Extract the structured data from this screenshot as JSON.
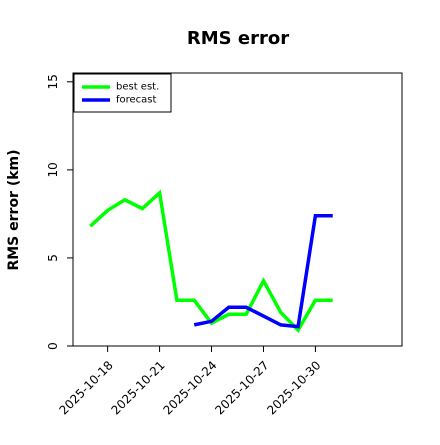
{
  "chart_data": {
    "type": "line",
    "title": "RMS error",
    "xlabel": "",
    "ylabel": "RMS error (km)",
    "x": [
      "2025-10-17",
      "2025-10-18",
      "2025-10-19",
      "2025-10-20",
      "2025-10-21",
      "2025-10-22",
      "2025-10-23",
      "2025-10-24",
      "2025-10-25",
      "2025-10-26",
      "2025-10-27",
      "2025-10-28",
      "2025-10-29",
      "2025-10-30",
      "2025-10-31"
    ],
    "series": [
      {
        "name": "best est.",
        "color": "#00ff00",
        "values": [
          6.8,
          7.7,
          8.3,
          7.8,
          8.7,
          2.6,
          2.6,
          1.3,
          1.8,
          1.8,
          3.7,
          1.9,
          0.9,
          2.6,
          2.6
        ]
      },
      {
        "name": "forecast",
        "color": "#0000ff",
        "values": [
          null,
          null,
          null,
          null,
          null,
          null,
          1.2,
          1.4,
          2.2,
          2.2,
          1.7,
          1.2,
          1.1,
          7.4,
          7.4
        ]
      }
    ],
    "xticks": [
      "2025-10-18",
      "2025-10-21",
      "2025-10-24",
      "2025-10-27",
      "2025-10-30"
    ],
    "yticks": [
      0,
      5,
      10,
      15
    ],
    "ylim": [
      0,
      15.5
    ],
    "xlim": [
      "2025-10-16",
      "2025-11-04"
    ],
    "grid": false,
    "legend_position": "top-left"
  }
}
